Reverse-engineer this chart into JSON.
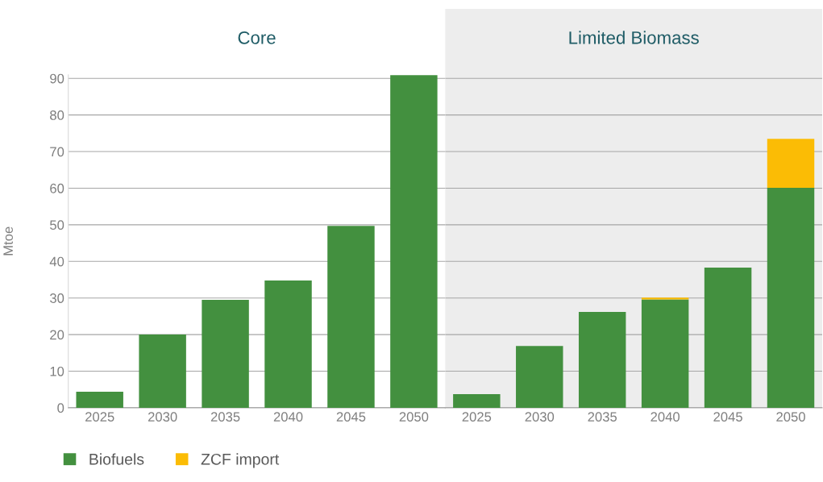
{
  "chart_data": [
    {
      "type": "bar",
      "title": "Core",
      "ylabel": "Mtoe",
      "stacked": true,
      "categories": [
        "2025",
        "2030",
        "2035",
        "2040",
        "2045",
        "2050"
      ],
      "series": [
        {
          "name": "Biofuels",
          "color": "#43903f",
          "values": [
            4.4,
            20.0,
            29.5,
            34.8,
            49.7,
            90.9
          ]
        },
        {
          "name": "ZCF import",
          "color": "#fbbc05",
          "values": [
            0,
            0,
            0,
            0,
            0,
            0
          ]
        }
      ],
      "ylim": [
        0,
        91
      ],
      "yticks": [
        0,
        10,
        20,
        30,
        40,
        50,
        60,
        70,
        80,
        90
      ],
      "grid": "y",
      "legend": "bottom left"
    },
    {
      "type": "bar",
      "title": "Limited Biomass",
      "stacked": true,
      "categories": [
        "2025",
        "2030",
        "2035",
        "2040",
        "2045",
        "2050"
      ],
      "series": [
        {
          "color": "#43903f",
          "values": [
            3.7,
            16.9,
            26.2,
            29.6,
            38.3,
            60.1
          ]
        },
        {
          "color": "#fbbc05",
          "values": [
            0,
            0,
            0,
            0.5,
            0,
            13.4
          ]
        }
      ],
      "ylim": [
        0,
        109
      ],
      "yticks": [
        0,
        10,
        20,
        30,
        40,
        50,
        60,
        70,
        80,
        90
      ],
      "grid": "y",
      "tick_labels": "x"
    }
  ]
}
